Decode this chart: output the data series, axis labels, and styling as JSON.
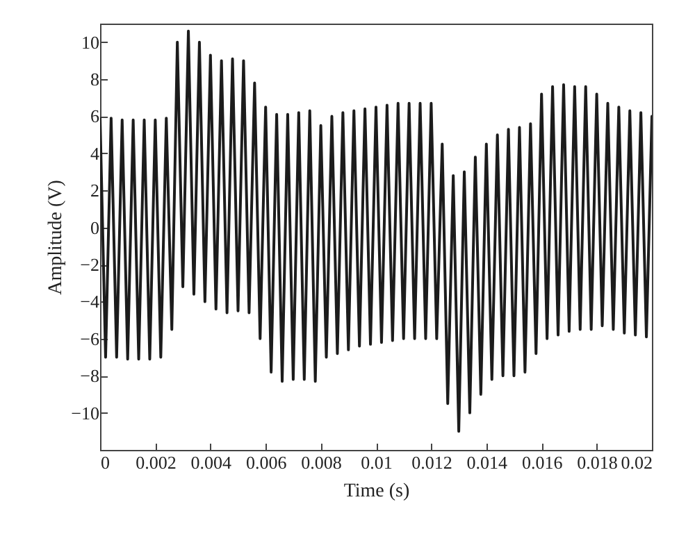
{
  "chart_data": {
    "type": "line",
    "xlabel": "Time (s)",
    "ylabel": "Amplitude (V)",
    "x": [
      0,
      0.0002,
      0.0004,
      0.0006,
      0.0008,
      0.001,
      0.0012,
      0.0014,
      0.0016,
      0.0018,
      0.002,
      0.0022,
      0.0024,
      0.0026,
      0.0028,
      0.003,
      0.0032,
      0.0034,
      0.0036,
      0.0038,
      0.004,
      0.0042,
      0.0044,
      0.0046,
      0.0048,
      0.005,
      0.0052,
      0.0054,
      0.0056,
      0.0058,
      0.006,
      0.0062,
      0.0064,
      0.0066,
      0.0068,
      0.007,
      0.0072,
      0.0074,
      0.0076,
      0.0078,
      0.008,
      0.0082,
      0.0084,
      0.0086,
      0.0088,
      0.009,
      0.0092,
      0.0094,
      0.0096,
      0.0098,
      0.01,
      0.0102,
      0.0104,
      0.0106,
      0.0108,
      0.011,
      0.0112,
      0.0114,
      0.0116,
      0.0118,
      0.012,
      0.0122,
      0.0124,
      0.0126,
      0.0128,
      0.013,
      0.0132,
      0.0134,
      0.0136,
      0.0138,
      0.014,
      0.0142,
      0.0144,
      0.0146,
      0.0148,
      0.015,
      0.0152,
      0.0154,
      0.0156,
      0.0158,
      0.016,
      0.0162,
      0.0164,
      0.0166,
      0.0168,
      0.017,
      0.0172,
      0.0174,
      0.0176,
      0.0178,
      0.018,
      0.0182,
      0.0184,
      0.0186,
      0.0188,
      0.019,
      0.0192,
      0.0194,
      0.0196,
      0.0198,
      0.02
    ],
    "series": [
      {
        "color": "#1c1c1c",
        "values": [
          5.9,
          -7,
          5.9,
          -7,
          5.8,
          -7.1,
          5.8,
          -7.1,
          5.8,
          -7.1,
          5.8,
          -7,
          5.9,
          -5.5,
          10,
          -3.2,
          10.6,
          -3.6,
          10,
          -4,
          9.3,
          -4.4,
          9,
          -4.6,
          9.1,
          -4.5,
          9,
          -4.6,
          7.8,
          -6,
          6.5,
          -7.8,
          6.1,
          -8.3,
          6.1,
          -8.2,
          6.2,
          -8.2,
          6.3,
          -8.3,
          5.5,
          -7,
          6,
          -6.8,
          6.2,
          -6.6,
          6.3,
          -6.4,
          6.4,
          -6.3,
          6.5,
          -6.2,
          6.6,
          -6.1,
          6.7,
          -6,
          6.7,
          -6,
          6.7,
          -6,
          6.7,
          -6,
          4.5,
          -9.5,
          2.8,
          -11,
          3,
          -10,
          3.8,
          -9,
          4.5,
          -8.2,
          5,
          -8,
          5.3,
          -8,
          5.4,
          -7.8,
          5.6,
          -6.8,
          7.2,
          -6,
          7.6,
          -5.8,
          7.7,
          -5.6,
          7.6,
          -5.5,
          7.6,
          -5.5,
          7.2,
          -5.3,
          6.7,
          -5.5,
          6.5,
          -5.7,
          6.3,
          -5.8,
          6.2,
          -5.9,
          6
        ]
      }
    ],
    "xlim": [
      0,
      0.02
    ],
    "xticks": [
      0,
      0.002,
      0.004,
      0.006,
      0.008,
      0.01,
      0.012,
      0.014,
      0.016,
      0.018,
      0.02
    ],
    "ylim": [
      -12,
      11
    ],
    "yticks": [
      -10,
      -8,
      -6,
      -4,
      -2,
      0,
      2,
      4,
      6,
      8,
      10
    ],
    "grid": false,
    "marker": "none",
    "line_style": "solid"
  }
}
